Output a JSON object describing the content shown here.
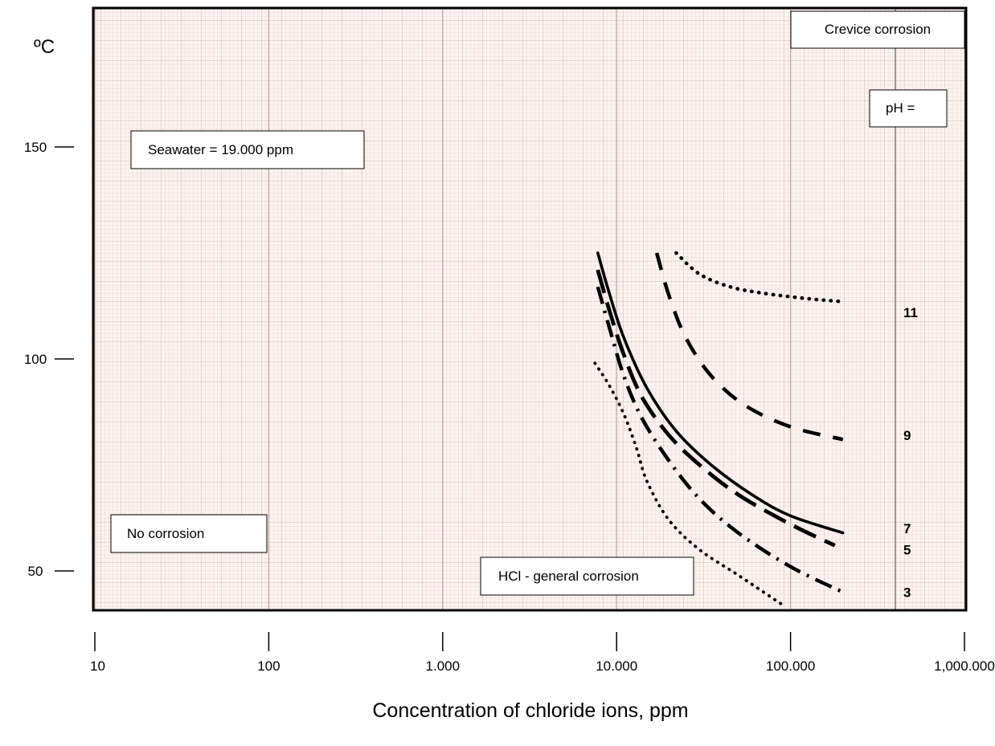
{
  "chart_data": {
    "type": "line",
    "ylabel": "ºC",
    "xlabel": "Concentration of chloride ions, ppm",
    "x_scale": "log",
    "xlim": [
      10,
      1000000
    ],
    "ylim": [
      40,
      180
    ],
    "x_ticks": [
      {
        "value": 10,
        "label": "10"
      },
      {
        "value": 100,
        "label": "100"
      },
      {
        "value": 1000,
        "label": "1.000"
      },
      {
        "value": 10000,
        "label": "10.000"
      },
      {
        "value": 100000,
        "label": "100.000"
      },
      {
        "value": 1000000,
        "label": "1,000.000"
      }
    ],
    "y_ticks": [
      {
        "value": 50,
        "label": "50"
      },
      {
        "value": 100,
        "label": "100"
      },
      {
        "value": 150,
        "label": "150"
      }
    ],
    "grid": true,
    "annotations": {
      "crevice": "Crevice corrosion",
      "ph": "pH =",
      "seawater": "Seawater = 19.000 ppm",
      "no_corrosion": "No corrosion",
      "hcl": "HCl - general corrosion"
    },
    "series": [
      {
        "name": "11",
        "style": "dotted-bold",
        "x": [
          22000,
          30000,
          45000,
          70000,
          120000,
          200000
        ],
        "y": [
          125,
          120,
          117,
          115.5,
          114.3,
          113.5
        ]
      },
      {
        "name": "9",
        "style": "long-dash",
        "x": [
          17000,
          20000,
          25000,
          35000,
          55000,
          100000,
          200000
        ],
        "y": [
          125,
          115,
          105,
          96,
          89,
          84,
          81
        ]
      },
      {
        "name": "7",
        "style": "solid",
        "x": [
          7800,
          9000,
          11000,
          15000,
          22000,
          35000,
          60000,
          100000,
          200000
        ],
        "y": [
          125,
          116,
          105,
          93,
          83,
          75,
          68,
          63,
          59
        ]
      },
      {
        "name": "5",
        "style": "long-dash-heavy",
        "x": [
          7800,
          9000,
          11000,
          14000,
          20000,
          30000,
          50000,
          100000,
          180000
        ],
        "y": [
          121,
          112,
          101,
          91,
          82,
          75,
          68,
          61,
          56
        ]
      },
      {
        "name": "3",
        "style": "dash-dot",
        "x": [
          7800,
          9000,
          11000,
          14000,
          20000,
          30000,
          50000,
          100000,
          200000
        ],
        "y": [
          117,
          108,
          96,
          86,
          76,
          67,
          59,
          51,
          45
        ]
      },
      {
        "name": "",
        "style": "fine-dotted",
        "x": [
          7500,
          9000,
          11000,
          13000,
          15000,
          20000,
          30000,
          50000,
          90000
        ],
        "y": [
          99,
          94,
          87,
          79,
          71,
          62,
          55,
          49,
          42
        ]
      }
    ]
  }
}
